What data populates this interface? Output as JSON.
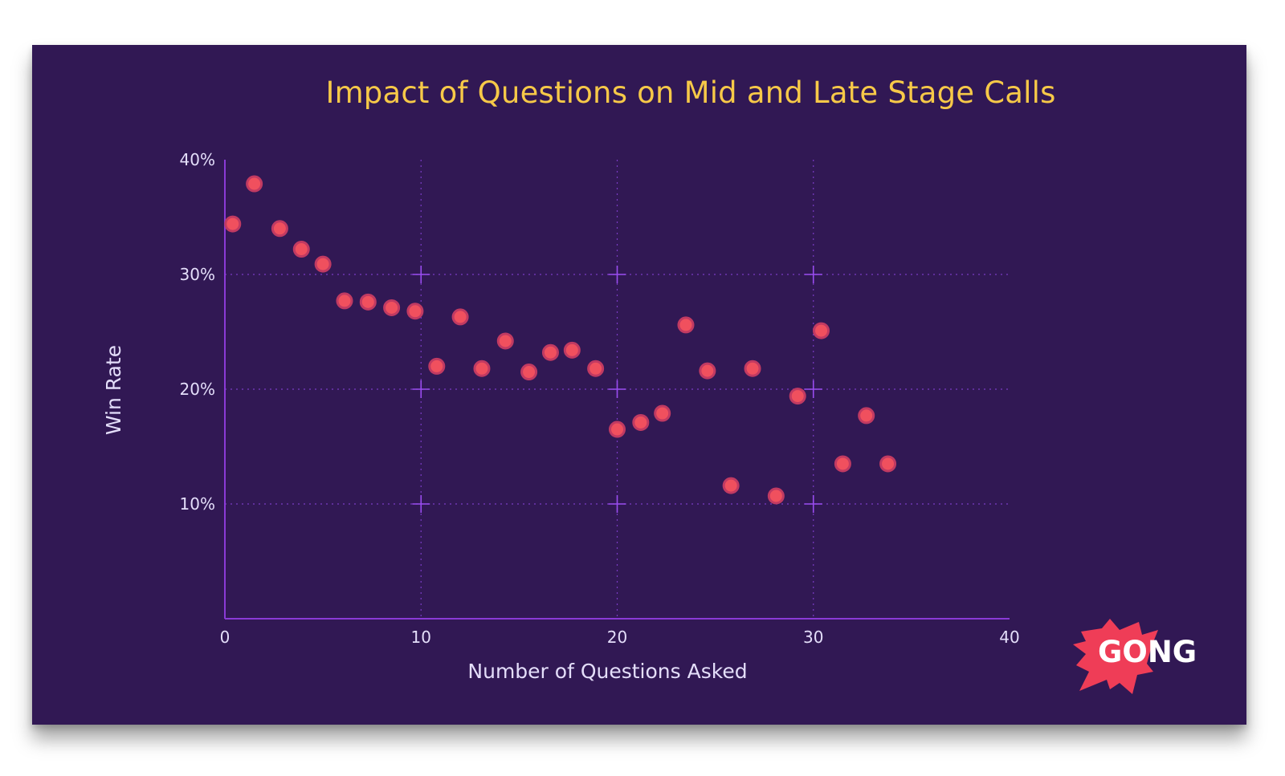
{
  "chart_data": {
    "type": "scatter",
    "title": "Impact of Questions on Mid and Late Stage Calls",
    "xlabel": "Number of Questions Asked",
    "ylabel": "Win Rate",
    "xlim": [
      0,
      40
    ],
    "ylim": [
      0,
      40
    ],
    "x_ticks": [
      0,
      10,
      20,
      30,
      40
    ],
    "x_tick_labels": [
      "0",
      "10",
      "20",
      "30",
      "40"
    ],
    "y_ticks": [
      10,
      20,
      30,
      40
    ],
    "y_tick_labels": [
      "10%",
      "20%",
      "30%",
      "40%"
    ],
    "grid": true,
    "points": [
      {
        "x": 0.4,
        "y": 34.4
      },
      {
        "x": 1.5,
        "y": 37.9
      },
      {
        "x": 2.8,
        "y": 34.0
      },
      {
        "x": 3.9,
        "y": 32.2
      },
      {
        "x": 5.0,
        "y": 30.9
      },
      {
        "x": 6.1,
        "y": 27.7
      },
      {
        "x": 7.3,
        "y": 27.6
      },
      {
        "x": 8.5,
        "y": 27.1
      },
      {
        "x": 9.7,
        "y": 26.8
      },
      {
        "x": 10.8,
        "y": 22.0
      },
      {
        "x": 12.0,
        "y": 26.3
      },
      {
        "x": 13.1,
        "y": 21.8
      },
      {
        "x": 14.3,
        "y": 24.2
      },
      {
        "x": 15.5,
        "y": 21.5
      },
      {
        "x": 16.6,
        "y": 23.2
      },
      {
        "x": 17.7,
        "y": 23.4
      },
      {
        "x": 18.9,
        "y": 21.8
      },
      {
        "x": 20.0,
        "y": 16.5
      },
      {
        "x": 21.2,
        "y": 17.1
      },
      {
        "x": 22.3,
        "y": 17.9
      },
      {
        "x": 23.5,
        "y": 25.6
      },
      {
        "x": 24.6,
        "y": 21.6
      },
      {
        "x": 25.8,
        "y": 11.6
      },
      {
        "x": 26.9,
        "y": 21.8
      },
      {
        "x": 28.1,
        "y": 10.7
      },
      {
        "x": 29.2,
        "y": 19.4
      },
      {
        "x": 30.4,
        "y": 25.1
      },
      {
        "x": 31.5,
        "y": 13.5
      },
      {
        "x": 32.7,
        "y": 17.7
      },
      {
        "x": 33.8,
        "y": 13.5
      }
    ]
  },
  "colors": {
    "background": "#311854",
    "title": "#f7c948",
    "axis": "#8a3ad6",
    "grid": "#7a3bc4",
    "point_fill": "#f0505e",
    "point_stroke": "#c13a62",
    "logo_burst": "#ef3d57"
  },
  "logo": {
    "text": "GONG"
  }
}
